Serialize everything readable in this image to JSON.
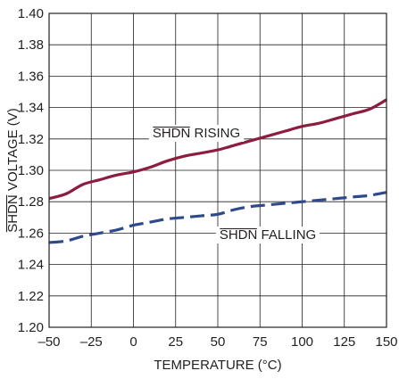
{
  "chart_data": {
    "type": "line",
    "title": "",
    "xlabel": "TEMPERATURE (°C)",
    "ylabel_overbar": "SHDN",
    "ylabel_rest": " VOLTAGE (V)",
    "xlim": [
      -50,
      150
    ],
    "ylim": [
      1.2,
      1.4
    ],
    "grid": true,
    "x_ticks": [
      "–50",
      "–25",
      "0",
      "25",
      "50",
      "75",
      "100",
      "125",
      "150"
    ],
    "y_ticks": [
      "1.20",
      "1.22",
      "1.24",
      "1.26",
      "1.28",
      "1.30",
      "1.32",
      "1.34",
      "1.36",
      "1.38",
      "1.40"
    ],
    "series": [
      {
        "name_overbar": "SHDN",
        "name_rest": " RISING",
        "color": "#8c1d3f",
        "style": "solid",
        "x": [
          -50,
          -40,
          -30,
          -20,
          -10,
          0,
          10,
          20,
          30,
          40,
          50,
          60,
          70,
          80,
          90,
          100,
          110,
          120,
          130,
          140,
          150
        ],
        "y": [
          1.282,
          1.285,
          1.291,
          1.294,
          1.297,
          1.299,
          1.302,
          1.306,
          1.309,
          1.311,
          1.313,
          1.316,
          1.319,
          1.322,
          1.325,
          1.328,
          1.33,
          1.333,
          1.336,
          1.339,
          1.345
        ]
      },
      {
        "name_overbar": "SHDN",
        "name_rest": " FALLING",
        "color": "#2e4a8c",
        "style": "dashed",
        "x": [
          -50,
          -40,
          -30,
          -20,
          -10,
          0,
          10,
          20,
          30,
          40,
          50,
          60,
          70,
          80,
          90,
          100,
          110,
          120,
          130,
          140,
          150
        ],
        "y": [
          1.254,
          1.255,
          1.258,
          1.26,
          1.262,
          1.265,
          1.267,
          1.269,
          1.27,
          1.271,
          1.272,
          1.275,
          1.277,
          1.278,
          1.279,
          1.28,
          1.281,
          1.282,
          1.283,
          1.284,
          1.286
        ]
      }
    ]
  }
}
